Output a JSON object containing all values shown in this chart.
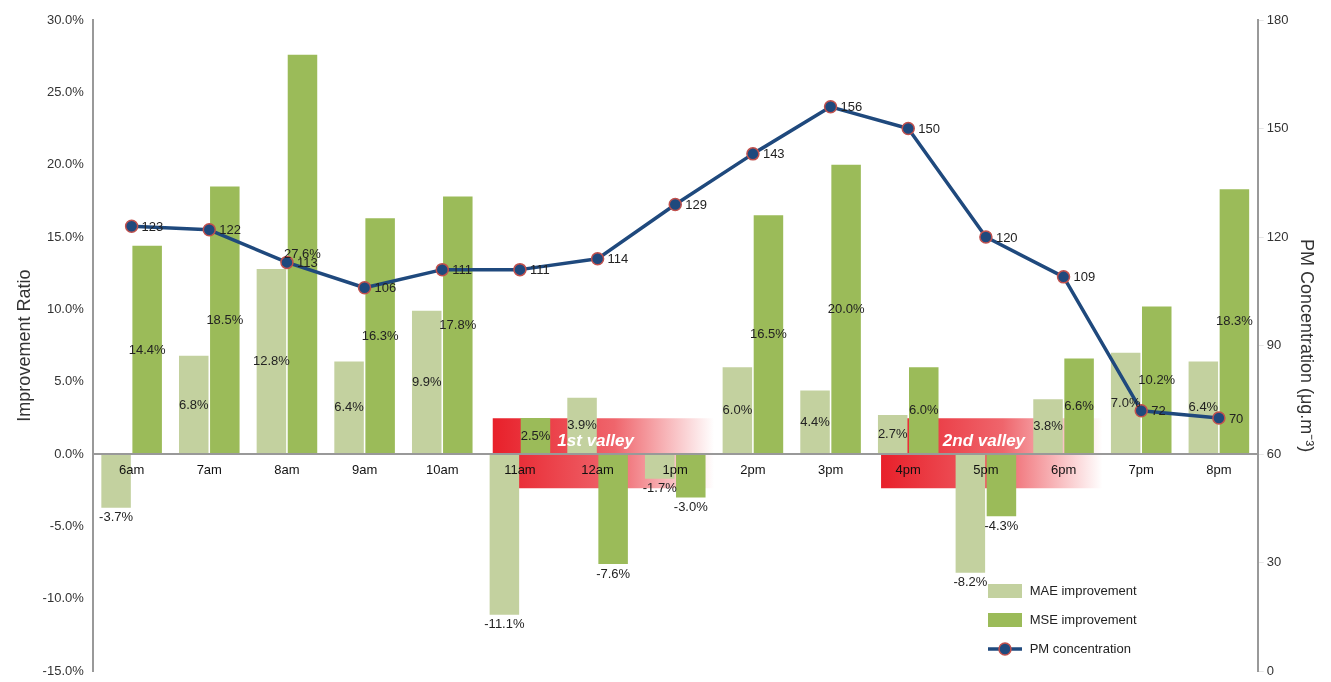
{
  "chart_data": {
    "type": "bar",
    "ylabel": "Improvement Ratio",
    "y2label": "PM Concentration (μg.m⁻³)",
    "categories": [
      "6am",
      "7am",
      "8am",
      "9am",
      "10am",
      "11am",
      "12am",
      "1pm",
      "2pm",
      "3pm",
      "4pm",
      "5pm",
      "6pm",
      "7pm",
      "8pm"
    ],
    "series": [
      {
        "name": "MAE improvement",
        "type": "bar",
        "color": "#c3d19f",
        "values": [
          -3.7,
          6.8,
          12.8,
          6.4,
          9.9,
          -11.1,
          3.9,
          -1.7,
          6.0,
          4.4,
          2.7,
          -8.2,
          3.8,
          7.0,
          6.4
        ],
        "value_labels": [
          "-3.7%",
          "6.8%",
          "12.8%",
          "6.4%",
          "9.9%",
          "-11.1%",
          "3.9%",
          "-1.7%",
          "6.0%",
          "4.4%",
          "2.7%",
          "-8.2%",
          "3.8%",
          "7.0%",
          "6.4%"
        ]
      },
      {
        "name": "MSE improvement",
        "color": "#9bbb59",
        "values": [
          14.4,
          18.5,
          27.6,
          16.3,
          17.8,
          2.5,
          -7.6,
          -3.0,
          16.5,
          20.0,
          6.0,
          -4.3,
          6.6,
          10.2,
          18.3
        ],
        "value_labels": [
          "14.4%",
          "18.5%",
          "27.6%",
          "16.3%",
          "17.8%",
          "2.5%",
          "-7.6%",
          "-3.0%",
          "16.5%",
          "20.0%",
          "6.0%",
          "-4.3%",
          "6.6%",
          "10.2%",
          "18.3%"
        ]
      },
      {
        "name": "PM concentration",
        "type": "line",
        "axis": "y2",
        "color": "#1f497d",
        "marker": "circle",
        "values": [
          123,
          122,
          113,
          106,
          111,
          111,
          114,
          129,
          143,
          156,
          150,
          120,
          109,
          72,
          70
        ],
        "value_labels": [
          "123",
          "122",
          "113",
          "106",
          "111",
          "111",
          "114",
          "129",
          "143",
          "156",
          "150",
          "120",
          "109",
          "72",
          "70"
        ]
      }
    ],
    "ylim": [
      -15,
      30
    ],
    "yticks": [
      {
        "value": -15,
        "label": "-15.0%"
      },
      {
        "value": -10,
        "label": "-10.0%"
      },
      {
        "value": -5,
        "label": "-5.0%"
      },
      {
        "value": 0,
        "label": "0.0%"
      },
      {
        "value": 5,
        "label": "5.0%"
      },
      {
        "value": 10,
        "label": "10.0%"
      },
      {
        "value": 15,
        "label": "15.0%"
      },
      {
        "value": 20,
        "label": "20.0%"
      },
      {
        "value": 25,
        "label": "25.0%"
      },
      {
        "value": 30,
        "label": "30.0%"
      }
    ],
    "y2lim": [
      0,
      180
    ],
    "y2ticks": [
      0,
      30,
      60,
      90,
      120,
      150,
      180
    ],
    "bands": [
      {
        "axis": "x",
        "from": "11am",
        "to": "1pm",
        "label": "1st valley",
        "color": "#e8202a"
      },
      {
        "axis": "x",
        "from": "4pm",
        "to": "6pm",
        "label": "2nd valley",
        "color": "#e8202a"
      }
    ],
    "legend": "bottom right",
    "grid": false
  }
}
